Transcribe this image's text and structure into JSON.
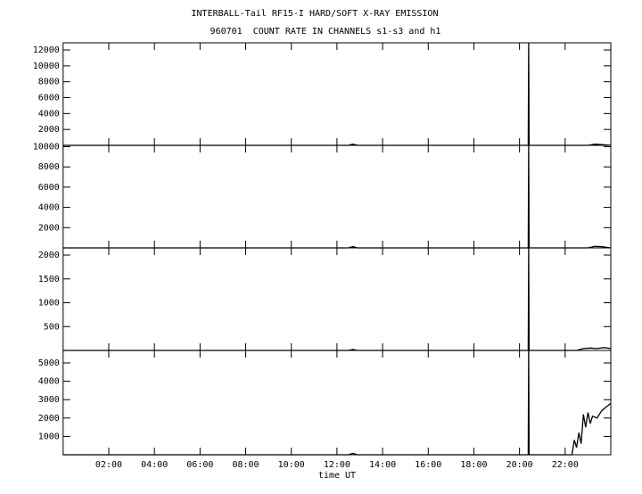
{
  "chart_data": [
    {
      "type": "line",
      "title": "INTERBALL-Tail RF15-I HARD/SOFT X-RAY EMISSION",
      "subtitle": "960701  COUNT RATE IN CHANNELS s1-s3 and h1",
      "x": [
        0,
        12.5,
        12.7,
        12.9,
        20.38,
        20.4,
        20.42,
        23.0,
        23.3,
        23.6,
        24
      ],
      "values": [
        0,
        0,
        150,
        0,
        0,
        12900,
        0,
        0,
        150,
        100,
        0
      ],
      "color": "#000000",
      "xlim": [
        0,
        24
      ],
      "ylim": [
        0,
        12900
      ],
      "yticks": [
        2000,
        4000,
        6000,
        8000,
        10000,
        12000
      ]
    },
    {
      "type": "line",
      "x": [
        0,
        12.5,
        12.7,
        12.9,
        20.38,
        20.4,
        20.42,
        23.0,
        23.3,
        23.6,
        24
      ],
      "values": [
        0,
        0,
        120,
        0,
        0,
        10130,
        0,
        0,
        150,
        120,
        0
      ],
      "color": "#000000",
      "xlim": [
        0,
        24
      ],
      "ylim": [
        0,
        10130
      ],
      "yticks": [
        2000,
        4000,
        6000,
        8000,
        10000
      ]
    },
    {
      "type": "line",
      "x": [
        0,
        12.5,
        12.7,
        12.9,
        20.38,
        20.4,
        20.42,
        22.5,
        22.8,
        23.1,
        23.4,
        23.7,
        24
      ],
      "values": [
        0,
        0,
        20,
        0,
        0,
        2150,
        0,
        0,
        40,
        50,
        40,
        60,
        40
      ],
      "color": "#000000",
      "xlim": [
        0,
        24
      ],
      "ylim": [
        0,
        2150
      ],
      "yticks": [
        500,
        1000,
        1500,
        2000
      ]
    },
    {
      "type": "line",
      "x": [
        0,
        12.5,
        12.7,
        12.9,
        20.38,
        20.4,
        20.42,
        22.3,
        22.4,
        22.5,
        22.6,
        22.7,
        22.8,
        22.9,
        23.0,
        23.1,
        23.2,
        23.4,
        23.6,
        23.8,
        24
      ],
      "values": [
        0,
        0,
        80,
        0,
        0,
        5680,
        0,
        0,
        800,
        400,
        1200,
        600,
        2200,
        1500,
        2300,
        1700,
        2100,
        2000,
        2400,
        2600,
        2800
      ],
      "color": "#000000",
      "xlim": [
        0,
        24
      ],
      "ylim": [
        0,
        5680
      ],
      "yticks": [
        1000,
        2000,
        3000,
        4000,
        5000
      ],
      "xticks": [
        {
          "value": 2,
          "label": "02:00"
        },
        {
          "value": 4,
          "label": "04:00"
        },
        {
          "value": 6,
          "label": "06:00"
        },
        {
          "value": 8,
          "label": "08:00"
        },
        {
          "value": 10,
          "label": "10:00"
        },
        {
          "value": 12,
          "label": "12:00"
        },
        {
          "value": 14,
          "label": "14:00"
        },
        {
          "value": 16,
          "label": "16:00"
        },
        {
          "value": 18,
          "label": "18:00"
        },
        {
          "value": 20,
          "label": "20:00"
        },
        {
          "value": 22,
          "label": "22:00"
        }
      ],
      "xlabel": "time UT"
    }
  ]
}
